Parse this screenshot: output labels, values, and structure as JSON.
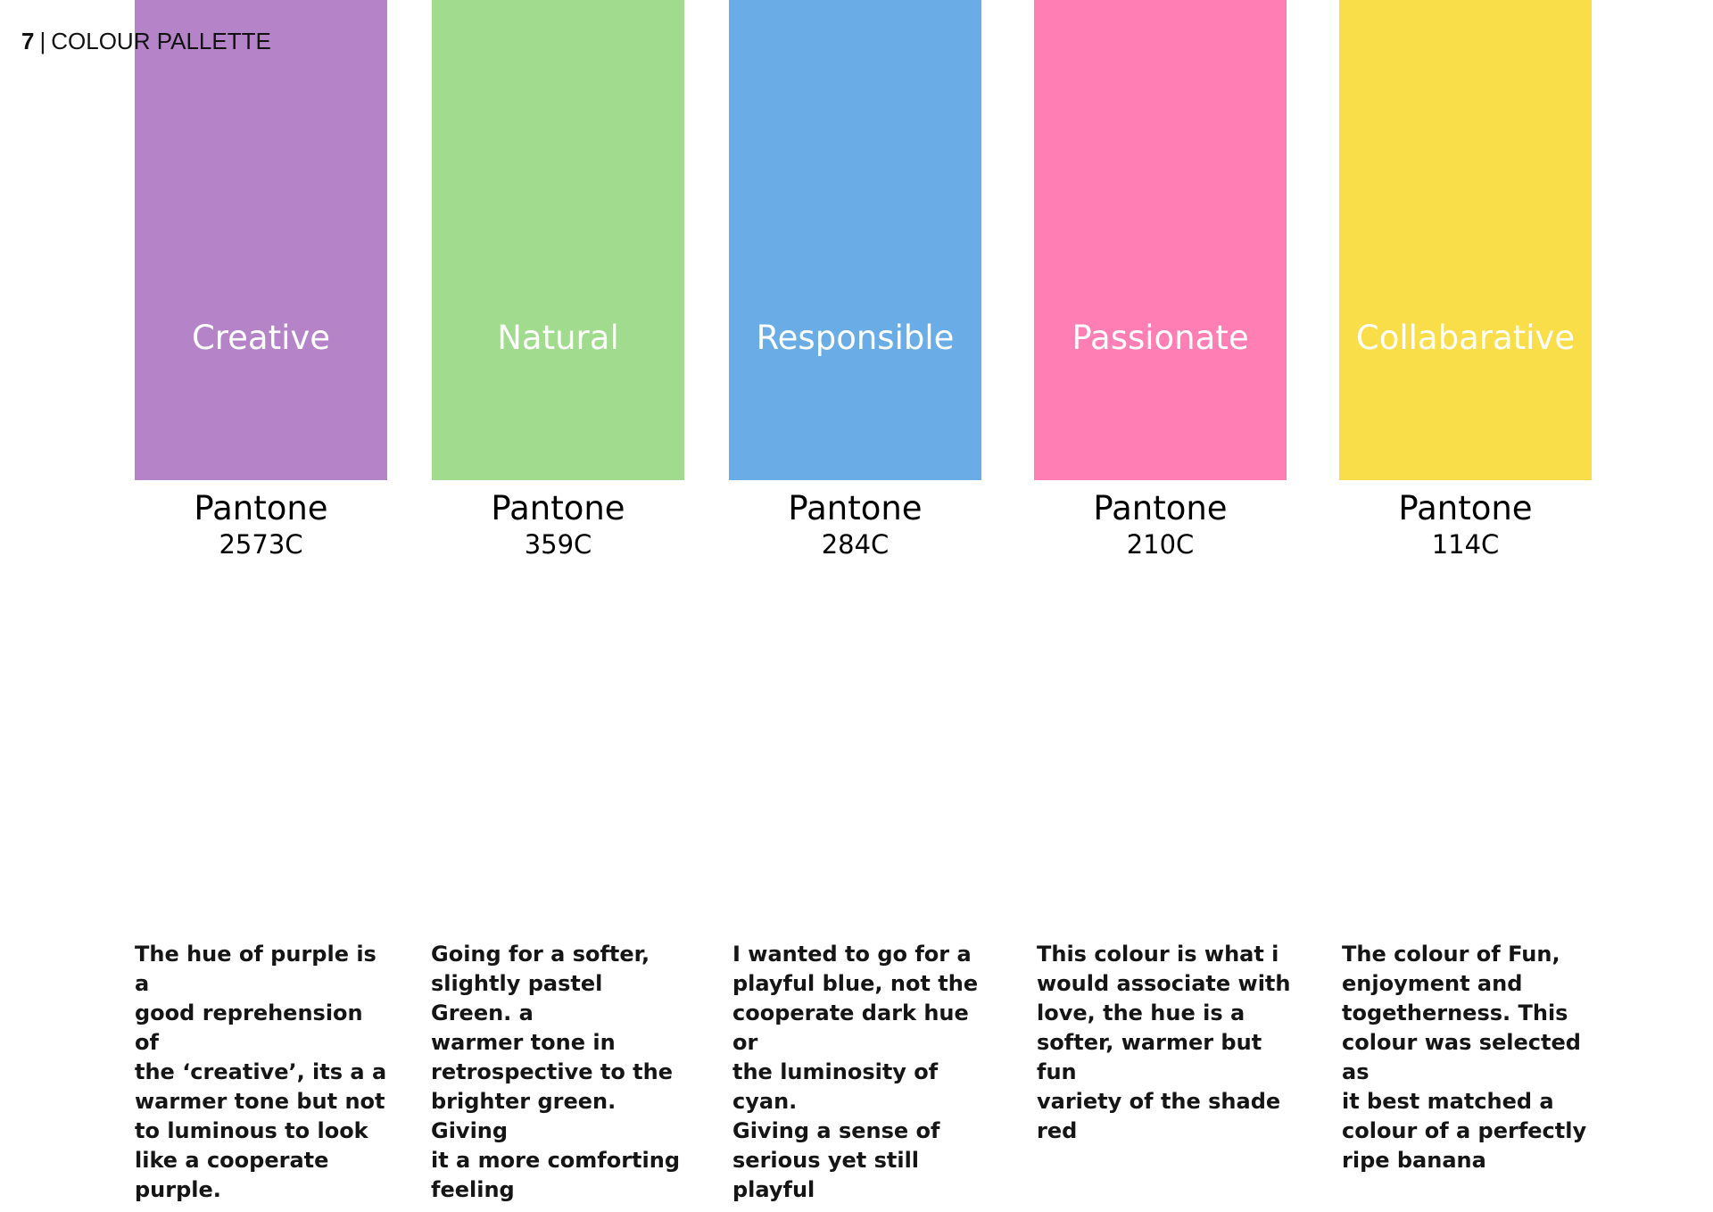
{
  "header": {
    "page_number": "7",
    "separator": "|",
    "section_title": "COLOUR PALLETTE"
  },
  "palette": [
    {
      "name": "Creative",
      "pantone_label": "Pantone",
      "pantone_code": "2573C",
      "color": "#B583C8",
      "description": "The hue of purple is a\ngood reprehension of\nthe ‘creative’, its a a\nwarmer tone but not\nto luminous to look\nlike a cooperate\npurple."
    },
    {
      "name": "Natural",
      "pantone_label": "Pantone",
      "pantone_code": "359C",
      "color": "#A1DB8D",
      "description": "Going for a softer,\nslightly pastel Green. a\nwarmer tone in\nretrospective to the\nbrighter green. Giving\nit a more comforting\nfeeling"
    },
    {
      "name": "Responsible",
      "pantone_label": "Pantone",
      "pantone_code": "284C",
      "color": "#6AADE6",
      "description": "I wanted to go for a\nplayful blue, not the\ncooperate dark hue or\nthe luminosity of cyan.\nGiving a sense of\nserious yet still playful"
    },
    {
      "name": "Passionate",
      "pantone_label": "Pantone",
      "pantone_code": "210C",
      "color": "#FF7FB5",
      "description": "This colour is what i\nwould associate with\nlove, the hue is a\nsofter, warmer but fun\nvariety of the shade\nred"
    },
    {
      "name": "Collabarative",
      "pantone_label": "Pantone",
      "pantone_code": "114C",
      "color": "#F9DE4A",
      "description": "The colour of Fun,\nenjoyment and\ntogetherness. This\ncolour was selected as\nit best matched a\ncolour of a perfectly\nripe banana"
    }
  ]
}
